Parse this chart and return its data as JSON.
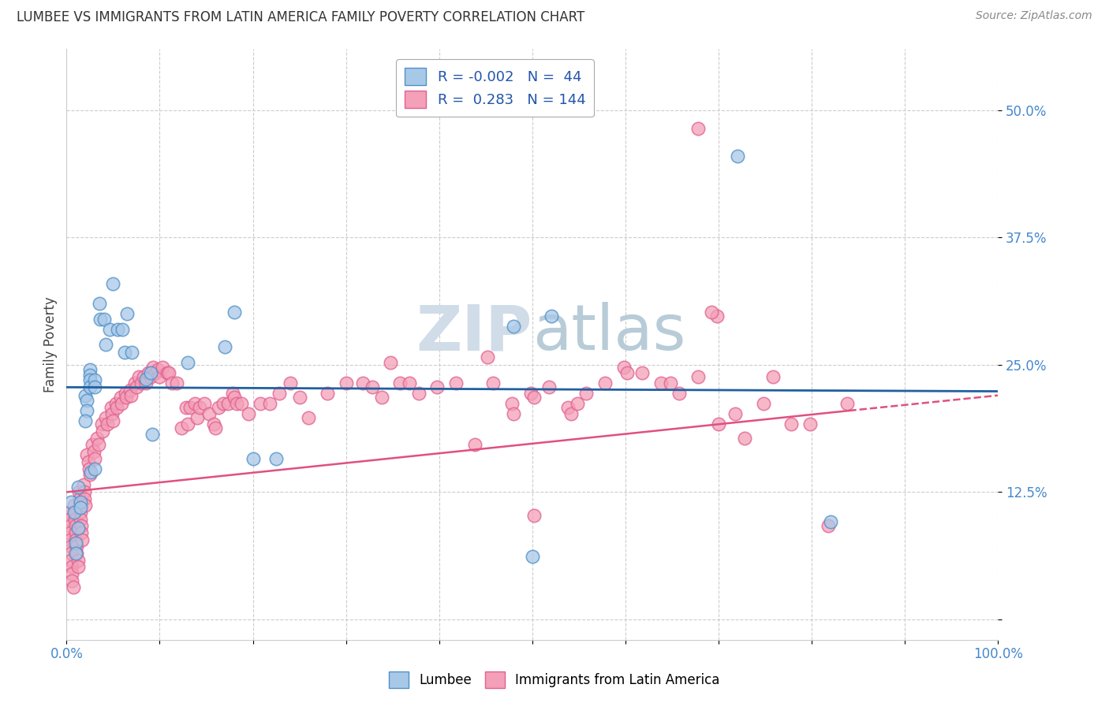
{
  "title": "LUMBEE VS IMMIGRANTS FROM LATIN AMERICA FAMILY POVERTY CORRELATION CHART",
  "source": "Source: ZipAtlas.com",
  "ylabel": "Family Poverty",
  "xlim": [
    0.0,
    1.0
  ],
  "ylim": [
    -0.02,
    0.56
  ],
  "yticks": [
    0.0,
    0.125,
    0.25,
    0.375,
    0.5
  ],
  "ytick_labels": [
    "",
    "12.5%",
    "25.0%",
    "37.5%",
    "50.0%"
  ],
  "r_blue": -0.002,
  "n_blue": 44,
  "r_pink": 0.283,
  "n_pink": 144,
  "blue_fill": "#a8c8e8",
  "blue_edge": "#5090c8",
  "pink_fill": "#f4a0b8",
  "pink_edge": "#e06090",
  "blue_line_color": "#2060a0",
  "pink_line_color": "#e05080",
  "watermark_color": "#d0dce8",
  "blue_regression": [
    0.0,
    1.0,
    0.228,
    0.224
  ],
  "pink_regression_solid": [
    0.0,
    0.84,
    0.125,
    0.205
  ],
  "pink_regression_dash": [
    0.84,
    1.0,
    0.205,
    0.22
  ],
  "blue_scatter": [
    [
      0.005,
      0.115
    ],
    [
      0.008,
      0.105
    ],
    [
      0.012,
      0.09
    ],
    [
      0.01,
      0.075
    ],
    [
      0.01,
      0.065
    ],
    [
      0.012,
      0.13
    ],
    [
      0.015,
      0.115
    ],
    [
      0.015,
      0.11
    ],
    [
      0.02,
      0.22
    ],
    [
      0.022,
      0.215
    ],
    [
      0.022,
      0.205
    ],
    [
      0.02,
      0.195
    ],
    [
      0.025,
      0.245
    ],
    [
      0.025,
      0.24
    ],
    [
      0.025,
      0.235
    ],
    [
      0.025,
      0.228
    ],
    [
      0.026,
      0.145
    ],
    [
      0.03,
      0.235
    ],
    [
      0.03,
      0.228
    ],
    [
      0.03,
      0.148
    ],
    [
      0.035,
      0.31
    ],
    [
      0.036,
      0.295
    ],
    [
      0.04,
      0.295
    ],
    [
      0.042,
      0.27
    ],
    [
      0.046,
      0.285
    ],
    [
      0.05,
      0.33
    ],
    [
      0.055,
      0.285
    ],
    [
      0.06,
      0.285
    ],
    [
      0.062,
      0.262
    ],
    [
      0.065,
      0.3
    ],
    [
      0.07,
      0.262
    ],
    [
      0.085,
      0.236
    ],
    [
      0.09,
      0.242
    ],
    [
      0.092,
      0.182
    ],
    [
      0.13,
      0.252
    ],
    [
      0.17,
      0.268
    ],
    [
      0.18,
      0.302
    ],
    [
      0.2,
      0.158
    ],
    [
      0.225,
      0.158
    ],
    [
      0.48,
      0.288
    ],
    [
      0.5,
      0.062
    ],
    [
      0.72,
      0.455
    ],
    [
      0.82,
      0.096
    ],
    [
      0.52,
      0.298
    ]
  ],
  "pink_scatter": [
    [
      0.003,
      0.105
    ],
    [
      0.003,
      0.098
    ],
    [
      0.004,
      0.092
    ],
    [
      0.004,
      0.085
    ],
    [
      0.004,
      0.078
    ],
    [
      0.005,
      0.072
    ],
    [
      0.005,
      0.065
    ],
    [
      0.005,
      0.058
    ],
    [
      0.006,
      0.052
    ],
    [
      0.006,
      0.045
    ],
    [
      0.006,
      0.038
    ],
    [
      0.007,
      0.032
    ],
    [
      0.008,
      0.112
    ],
    [
      0.009,
      0.105
    ],
    [
      0.009,
      0.098
    ],
    [
      0.01,
      0.092
    ],
    [
      0.01,
      0.085
    ],
    [
      0.01,
      0.078
    ],
    [
      0.011,
      0.072
    ],
    [
      0.011,
      0.065
    ],
    [
      0.012,
      0.058
    ],
    [
      0.012,
      0.052
    ],
    [
      0.013,
      0.125
    ],
    [
      0.014,
      0.118
    ],
    [
      0.014,
      0.112
    ],
    [
      0.015,
      0.105
    ],
    [
      0.015,
      0.098
    ],
    [
      0.016,
      0.092
    ],
    [
      0.016,
      0.085
    ],
    [
      0.017,
      0.078
    ],
    [
      0.018,
      0.132
    ],
    [
      0.019,
      0.125
    ],
    [
      0.019,
      0.118
    ],
    [
      0.02,
      0.112
    ],
    [
      0.022,
      0.162
    ],
    [
      0.023,
      0.155
    ],
    [
      0.024,
      0.148
    ],
    [
      0.025,
      0.142
    ],
    [
      0.028,
      0.172
    ],
    [
      0.029,
      0.165
    ],
    [
      0.03,
      0.158
    ],
    [
      0.033,
      0.178
    ],
    [
      0.034,
      0.172
    ],
    [
      0.038,
      0.192
    ],
    [
      0.039,
      0.185
    ],
    [
      0.042,
      0.198
    ],
    [
      0.044,
      0.192
    ],
    [
      0.048,
      0.208
    ],
    [
      0.049,
      0.202
    ],
    [
      0.05,
      0.195
    ],
    [
      0.053,
      0.212
    ],
    [
      0.054,
      0.208
    ],
    [
      0.058,
      0.218
    ],
    [
      0.059,
      0.212
    ],
    [
      0.063,
      0.222
    ],
    [
      0.064,
      0.218
    ],
    [
      0.068,
      0.225
    ],
    [
      0.069,
      0.22
    ],
    [
      0.073,
      0.232
    ],
    [
      0.075,
      0.228
    ],
    [
      0.078,
      0.238
    ],
    [
      0.08,
      0.232
    ],
    [
      0.083,
      0.238
    ],
    [
      0.085,
      0.232
    ],
    [
      0.088,
      0.242
    ],
    [
      0.09,
      0.238
    ],
    [
      0.093,
      0.248
    ],
    [
      0.095,
      0.242
    ],
    [
      0.098,
      0.245
    ],
    [
      0.1,
      0.238
    ],
    [
      0.103,
      0.248
    ],
    [
      0.108,
      0.242
    ],
    [
      0.11,
      0.242
    ],
    [
      0.113,
      0.232
    ],
    [
      0.118,
      0.232
    ],
    [
      0.123,
      0.188
    ],
    [
      0.128,
      0.208
    ],
    [
      0.13,
      0.192
    ],
    [
      0.133,
      0.208
    ],
    [
      0.138,
      0.212
    ],
    [
      0.14,
      0.198
    ],
    [
      0.143,
      0.208
    ],
    [
      0.148,
      0.212
    ],
    [
      0.153,
      0.202
    ],
    [
      0.158,
      0.192
    ],
    [
      0.16,
      0.188
    ],
    [
      0.163,
      0.208
    ],
    [
      0.168,
      0.212
    ],
    [
      0.173,
      0.212
    ],
    [
      0.178,
      0.222
    ],
    [
      0.18,
      0.218
    ],
    [
      0.183,
      0.212
    ],
    [
      0.188,
      0.212
    ],
    [
      0.195,
      0.202
    ],
    [
      0.208,
      0.212
    ],
    [
      0.218,
      0.212
    ],
    [
      0.228,
      0.222
    ],
    [
      0.24,
      0.232
    ],
    [
      0.25,
      0.218
    ],
    [
      0.26,
      0.198
    ],
    [
      0.28,
      0.222
    ],
    [
      0.3,
      0.232
    ],
    [
      0.318,
      0.232
    ],
    [
      0.328,
      0.228
    ],
    [
      0.338,
      0.218
    ],
    [
      0.348,
      0.252
    ],
    [
      0.358,
      0.232
    ],
    [
      0.368,
      0.232
    ],
    [
      0.378,
      0.222
    ],
    [
      0.398,
      0.228
    ],
    [
      0.418,
      0.232
    ],
    [
      0.438,
      0.172
    ],
    [
      0.458,
      0.232
    ],
    [
      0.478,
      0.212
    ],
    [
      0.48,
      0.202
    ],
    [
      0.498,
      0.222
    ],
    [
      0.502,
      0.218
    ],
    [
      0.518,
      0.228
    ],
    [
      0.538,
      0.208
    ],
    [
      0.542,
      0.202
    ],
    [
      0.548,
      0.212
    ],
    [
      0.558,
      0.222
    ],
    [
      0.578,
      0.232
    ],
    [
      0.598,
      0.248
    ],
    [
      0.602,
      0.242
    ],
    [
      0.618,
      0.242
    ],
    [
      0.638,
      0.232
    ],
    [
      0.648,
      0.232
    ],
    [
      0.658,
      0.222
    ],
    [
      0.678,
      0.238
    ],
    [
      0.698,
      0.298
    ],
    [
      0.7,
      0.192
    ],
    [
      0.718,
      0.202
    ],
    [
      0.728,
      0.178
    ],
    [
      0.748,
      0.212
    ],
    [
      0.758,
      0.238
    ],
    [
      0.778,
      0.192
    ],
    [
      0.798,
      0.192
    ],
    [
      0.818,
      0.092
    ],
    [
      0.838,
      0.212
    ],
    [
      0.678,
      0.482
    ],
    [
      0.502,
      0.102
    ],
    [
      0.692,
      0.302
    ],
    [
      0.452,
      0.258
    ]
  ]
}
